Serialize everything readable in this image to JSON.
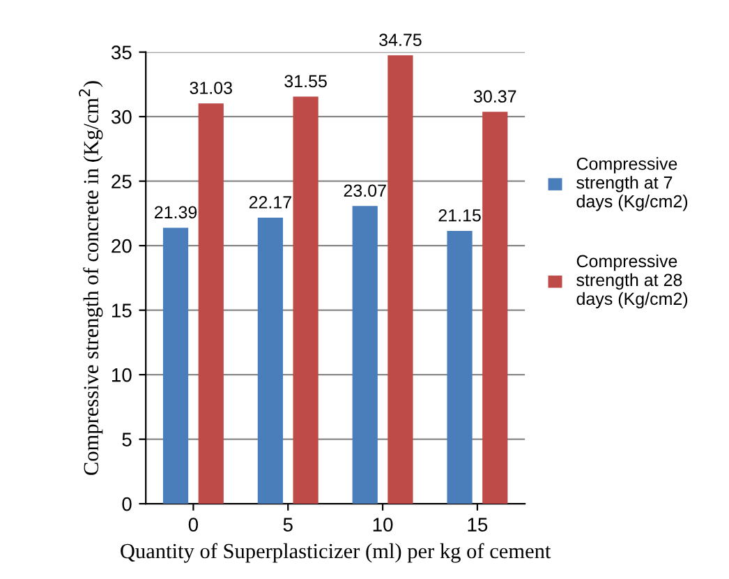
{
  "chart_data": {
    "type": "bar",
    "xlabel": "Quantity of Superplasticizer (ml) per kg of cement",
    "ylabel": "Compressive strength of concrete in (Kg/cm$^{2}$)",
    "categories": [
      "0",
      "5",
      "10",
      "15"
    ],
    "series": [
      {
        "name": "Compressive strength at 7 days (Kg/cm2)",
        "color": "#4a7ebb",
        "values": [
          21.39,
          22.17,
          23.07,
          21.15
        ]
      },
      {
        "name": "Compressive strength at 28 days (Kg/cm2)",
        "color": "#be4b48",
        "values": [
          31.03,
          31.55,
          34.75,
          30.37
        ]
      }
    ],
    "ylim": [
      0,
      35
    ],
    "yticks": [
      0,
      5,
      10,
      15,
      20,
      25,
      30,
      35
    ],
    "grid": "y",
    "legend": "right",
    "data_labels": true
  }
}
